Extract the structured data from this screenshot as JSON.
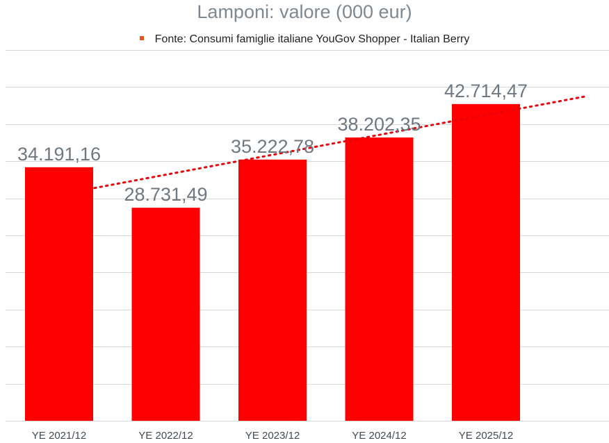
{
  "chart_data": {
    "type": "bar",
    "title": "Lamponi: valore (000 eur)",
    "legend": {
      "entries": [
        "Fonte: Consumi famiglie italiane YouGov Shopper - Italian Berry"
      ],
      "placement": "top",
      "marker_color": "#e8541a"
    },
    "categories": [
      "YE 2021/12",
      "YE 2022/12",
      "YE 2023/12",
      "YE 2024/12",
      "YE 2025/12"
    ],
    "values": [
      34191.16,
      28731.49,
      35222.78,
      38202.35,
      42714.47
    ],
    "data_labels": [
      "34.191,16",
      "28.731,49",
      "35.222,78",
      "38.202,35",
      "42.714,47"
    ],
    "xlabel": "",
    "ylabel": "",
    "ylim": [
      0,
      50000
    ],
    "grid": true,
    "trendline": {
      "type": "linear",
      "style": "dotted",
      "color": "#e8000b"
    },
    "colors": {
      "bar": "#ff0000",
      "trendline": "#e8000b",
      "grid": "#d9d9d9",
      "data_label": "#6f7880",
      "title": "#7f878f"
    }
  }
}
